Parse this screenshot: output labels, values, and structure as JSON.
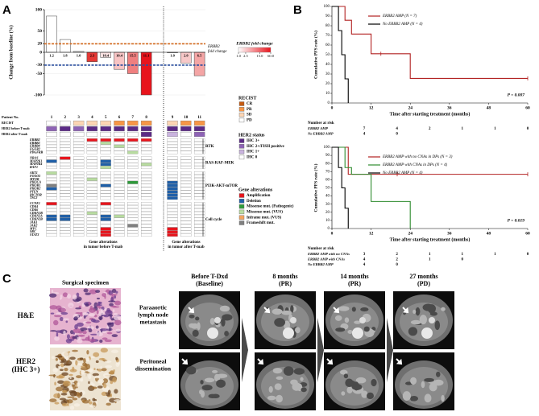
{
  "panel_labels": [
    "A",
    "B",
    "C"
  ],
  "chart_data": [
    {
      "type": "bar",
      "ylabel": "Change from baseline (%)",
      "categories": [
        "1",
        "2",
        "3",
        "4",
        "5",
        "6",
        "7",
        "8",
        "9",
        "10",
        "11"
      ],
      "values": [
        85,
        30,
        2,
        -22,
        -12,
        -40,
        -50,
        -100,
        0,
        -25,
        -55
      ],
      "fold_change_labels": [
        "1.2",
        "1.8",
        "1.0",
        "2.3",
        "10.4",
        "10.4",
        "15.5",
        "11.1",
        "1.0",
        "2.0",
        "6.5"
      ],
      "colors": [
        "#ffffff",
        "#ffffff",
        "#ffffff",
        "#e53935",
        "#fbe3e3",
        "#f8c4c4",
        "#ef7f7f",
        "#e8141c",
        "#ffffff",
        "#f7c8c8",
        "#f4a5a5"
      ],
      "ylim": [
        -100,
        100
      ],
      "yticks": [
        100,
        50,
        20,
        0,
        -30,
        -50,
        -100
      ],
      "reference_lines": [
        {
          "value": 20,
          "color": "#d2691e"
        },
        {
          "value": -30,
          "color": "#2b4f9e"
        }
      ],
      "reference_label": [
        "ERBB2",
        "fold change"
      ],
      "colorbar": {
        "title": "ERBB2 fold change",
        "scale": "log",
        "colors": [
          "#ffffff",
          "#e8141c"
        ],
        "ticks": [
          {
            "value": 1,
            "label": "1.0"
          },
          2.5,
          {
            "value": 15,
            "label": "15.0"
          },
          {
            "value": 60,
            "label": "60.0"
          }
        ]
      }
    },
    {
      "type": "line",
      "step": true,
      "xlabel": "Time after starting treatment (months)",
      "ylabel": "Cumulative PFS rate (%)",
      "xlim": [
        0,
        60
      ],
      "ylim": [
        0,
        100
      ],
      "xticks": [
        0,
        12,
        24,
        36,
        48,
        60
      ],
      "yticks": [
        0,
        10,
        20,
        30,
        40,
        50,
        60,
        70,
        80,
        90,
        100
      ],
      "series": [
        {
          "name": "ERBB2 AMP (N = 7)",
          "color": "#b22222",
          "x": [
            0,
            4,
            6,
            12,
            24,
            60
          ],
          "values": [
            100,
            85.7,
            71.4,
            51,
            25.5,
            25.5
          ],
          "censor_x": [
            15,
            60
          ]
        },
        {
          "name": "No ERBB2 AMP (N = 4)",
          "color": "#000000",
          "x": [
            0,
            2,
            3,
            4,
            5
          ],
          "values": [
            100,
            75,
            50,
            25,
            0
          ]
        }
      ],
      "annotation": "P = 0.007",
      "risk_table": {
        "title": "Number at risk",
        "rows": [
          {
            "name": "ERBB2 AMP",
            "counts": [
              7,
              4,
              2,
              1,
              1,
              0
            ]
          },
          {
            "name": "No ERBB2 AMP",
            "counts": [
              4,
              0
            ]
          }
        ]
      }
    },
    {
      "type": "line",
      "step": true,
      "xlabel": "Time after starting treatment (months)",
      "ylabel": "Cumulative PFS rate (%)",
      "xlim": [
        0,
        60
      ],
      "ylim": [
        0,
        100
      ],
      "xticks": [
        0,
        12,
        24,
        36,
        48,
        60
      ],
      "yticks": [
        0,
        10,
        20,
        30,
        40,
        50,
        60,
        70,
        80,
        90,
        100
      ],
      "series": [
        {
          "name": "ERBB2 AMP with no CNAs in DPs (N = 3)",
          "color": "#b22222",
          "x": [
            0,
            5,
            60
          ],
          "values": [
            100,
            66.7,
            66.7
          ],
          "censor_x": [
            20,
            60
          ]
        },
        {
          "name": "ERBB2 AMP with CNAs in DPs (N = 4)",
          "color": "#2e8b2e",
          "x": [
            0,
            4,
            6,
            12,
            24
          ],
          "values": [
            100,
            75,
            66.7,
            33.3,
            0
          ]
        },
        {
          "name": "No ERBB2 AMP (N = 4)",
          "color": "#000000",
          "x": [
            0,
            2,
            3,
            4,
            5
          ],
          "values": [
            100,
            75,
            50,
            25,
            0
          ]
        }
      ],
      "annotation": "P = 0.019",
      "risk_table": {
        "title": "Number at risk",
        "rows": [
          {
            "name": "ERBB2 AMP with no CNAs",
            "counts": [
              3,
              2,
              1,
              1,
              1,
              0
            ]
          },
          {
            "name": "ERBB2 AMP with CNAs",
            "counts": [
              4,
              2,
              1,
              0
            ]
          },
          {
            "name": "No ERBB2 AMP",
            "counts": [
              4,
              0
            ]
          }
        ]
      }
    }
  ],
  "oncoprint": {
    "patient_label": "Patient No.",
    "status_rows": [
      {
        "name": "RECIST",
        "values": [
          3,
          3,
          2,
          2,
          2,
          1,
          1,
          1,
          2,
          1,
          1
        ]
      },
      {
        "name": "HER2 before T-mab",
        "values": [
          1,
          0,
          1,
          0,
          0,
          0,
          0,
          0,
          0,
          0,
          0
        ]
      },
      {
        "name": "HER2 after T-mab",
        "values": [
          null,
          null,
          null,
          null,
          null,
          null,
          null,
          0,
          2,
          3,
          1
        ]
      }
    ],
    "legends": [
      {
        "title": "RECIST",
        "items": [
          {
            "name": "CR",
            "color": "#c55a11"
          },
          {
            "name": "PR",
            "color": "#f79646"
          },
          {
            "name": "SD",
            "color": "#fcd5b4"
          },
          {
            "name": "PD",
            "color": "#ffffff"
          }
        ]
      },
      {
        "title": "HER2 status",
        "items": [
          {
            "name": "IHC 3+",
            "color": "#5b2a86"
          },
          {
            "name": "IHC 2+/FISH positive",
            "color": "#8e63b5"
          },
          {
            "name": "IHC 1+",
            "color": "#c9b3de"
          },
          {
            "name": "IHC 0",
            "color": "#ffffff"
          }
        ]
      },
      {
        "title": "Gene alterations",
        "items": [
          {
            "name": "Amplification",
            "color": "#e8141c"
          },
          {
            "name": "Deletion",
            "color": "#1f5fa8"
          },
          {
            "name": "Missense mut. (Pathogenic)",
            "color": "#2e9b3a"
          },
          {
            "name": "Missense mut. (VUS)",
            "color": "#b8dca0"
          },
          {
            "name": "Inframe mut. (VUS)",
            "color": "#f4a460"
          },
          {
            "name": "Frameshift mut.",
            "color": "#808080"
          }
        ]
      }
    ],
    "groups": [
      {
        "name": "RTK",
        "genes": [
          {
            "name": "ERBB2",
            "values": [
              null,
              null,
              null,
              0,
              0,
              0,
              0,
              0,
              null,
              null,
              null
            ]
          },
          {
            "name": "ERBB3",
            "values": [
              null,
              null,
              null,
              null,
              3,
              null,
              null,
              null,
              null,
              null,
              null
            ]
          },
          {
            "name": "ERBB4",
            "values": [
              null,
              null,
              null,
              null,
              null,
              3,
              null,
              null,
              null,
              null,
              null
            ]
          },
          {
            "name": "FGFR2",
            "values": [
              null,
              null,
              null,
              null,
              null,
              null,
              null,
              null,
              null,
              null,
              null
            ]
          },
          {
            "name": "PDGFRB",
            "values": [
              null,
              null,
              null,
              null,
              null,
              null,
              3,
              null,
              null,
              null,
              null
            ]
          }
        ]
      },
      {
        "name": "RAS-RAF-MEK",
        "genes": [
          {
            "name": "NRAS",
            "values": [
              null,
              0,
              null,
              null,
              null,
              null,
              null,
              null,
              null,
              null,
              null
            ]
          },
          {
            "name": "MAP2K1",
            "values": [
              1,
              null,
              null,
              null,
              1,
              null,
              null,
              null,
              null,
              null,
              null
            ]
          },
          {
            "name": "MAP2K4",
            "values": [
              null,
              null,
              null,
              null,
              1,
              null,
              null,
              3,
              null,
              null,
              null
            ]
          },
          {
            "name": "RAF1",
            "values": [
              null,
              null,
              null,
              null,
              3,
              null,
              null,
              null,
              null,
              null,
              null
            ]
          }
        ]
      },
      {
        "name": "PI3K-AKT-mTOR",
        "genes": [
          {
            "name": "AKT1",
            "values": [
              3,
              null,
              null,
              null,
              null,
              null,
              null,
              null,
              null,
              null,
              null
            ]
          },
          {
            "name": "FOXO3",
            "values": [
              null,
              null,
              null,
              null,
              null,
              null,
              null,
              null,
              null,
              null,
              null
            ]
          },
          {
            "name": "MTOR",
            "values": [
              null,
              null,
              null,
              3,
              null,
              null,
              null,
              null,
              null,
              null,
              null
            ]
          },
          {
            "name": "PIK3CA",
            "values": [
              null,
              null,
              null,
              null,
              null,
              null,
              2,
              null,
              1,
              null,
              null
            ]
          },
          {
            "name": "PIK3R1",
            "values": [
              5,
              null,
              null,
              null,
              1,
              null,
              null,
              null,
              1,
              null,
              null
            ]
          },
          {
            "name": "PIK3R2",
            "values": [
              1,
              null,
              null,
              null,
              null,
              null,
              null,
              null,
              1,
              null,
              null
            ]
          },
          {
            "name": "PTEN",
            "values": [
              null,
              null,
              null,
              null,
              null,
              null,
              null,
              null,
              1,
              null,
              null
            ]
          },
          {
            "name": "RICTOR",
            "values": [
              null,
              null,
              null,
              null,
              null,
              null,
              null,
              null,
              1,
              null,
              null
            ]
          },
          {
            "name": "TSC2",
            "values": [
              null,
              null,
              null,
              null,
              null,
              null,
              null,
              null,
              1,
              null,
              null
            ]
          }
        ]
      },
      {
        "name": "Cell cycle",
        "genes": [
          {
            "name": "CCNE1",
            "values": [
              0,
              null,
              null,
              null,
              0,
              null,
              null,
              null,
              null,
              null,
              null
            ]
          },
          {
            "name": "CDK4",
            "values": [
              null,
              null,
              null,
              null,
              null,
              null,
              null,
              null,
              null,
              null,
              null
            ]
          },
          {
            "name": "CDK6",
            "values": [
              null,
              null,
              null,
              null,
              null,
              null,
              null,
              null,
              null,
              null,
              null
            ]
          },
          {
            "name": "CDKN1B",
            "values": [
              null,
              null,
              null,
              3,
              null,
              null,
              null,
              null,
              null,
              null,
              null
            ]
          },
          {
            "name": "CDKN2A",
            "values": [
              1,
              1,
              null,
              null,
              1,
              3,
              null,
              null,
              null,
              null,
              null
            ]
          },
          {
            "name": "CDKN2B",
            "values": [
              1,
              1,
              null,
              null,
              1,
              null,
              null,
              null,
              null,
              null,
              null
            ]
          },
          {
            "name": "JAK1",
            "values": [
              null,
              null,
              null,
              null,
              null,
              null,
              null,
              null,
              null,
              null,
              null
            ]
          },
          {
            "name": "JAK2",
            "values": [
              null,
              null,
              null,
              null,
              null,
              null,
              5,
              null,
              null,
              null,
              null
            ]
          },
          {
            "name": "MYC",
            "values": [
              null,
              null,
              null,
              null,
              0,
              null,
              null,
              null,
              0,
              null,
              null
            ]
          },
          {
            "name": "SRC",
            "values": [
              null,
              null,
              null,
              null,
              0,
              null,
              null,
              null,
              0,
              null,
              null
            ]
          },
          {
            "name": "STAT3",
            "values": [
              null,
              null,
              null,
              null,
              0,
              null,
              null,
              null,
              0,
              null,
              null
            ]
          }
        ]
      }
    ],
    "footers": [
      [
        "Gene alterations",
        "in tumor before T-mab"
      ],
      [
        "Gene alterations",
        "in tumor after T-mab"
      ]
    ]
  },
  "panel_c": {
    "specimen_title": "Surgical specimen",
    "stain_labels": [
      [
        "H&E"
      ],
      [
        "HER2",
        "(IHC 3+)"
      ]
    ],
    "lesion_labels": [
      [
        "Paraaortic",
        "lymph node",
        "metastasis"
      ],
      [
        "Peritoneal",
        "dissemination"
      ]
    ],
    "timepoints": [
      [
        "Before T-Dxd",
        "(Baseline)"
      ],
      [
        "8 months",
        "(PR)"
      ],
      [
        "14 months",
        "(PR)"
      ],
      [
        "27 months",
        "(PD)"
      ]
    ]
  }
}
